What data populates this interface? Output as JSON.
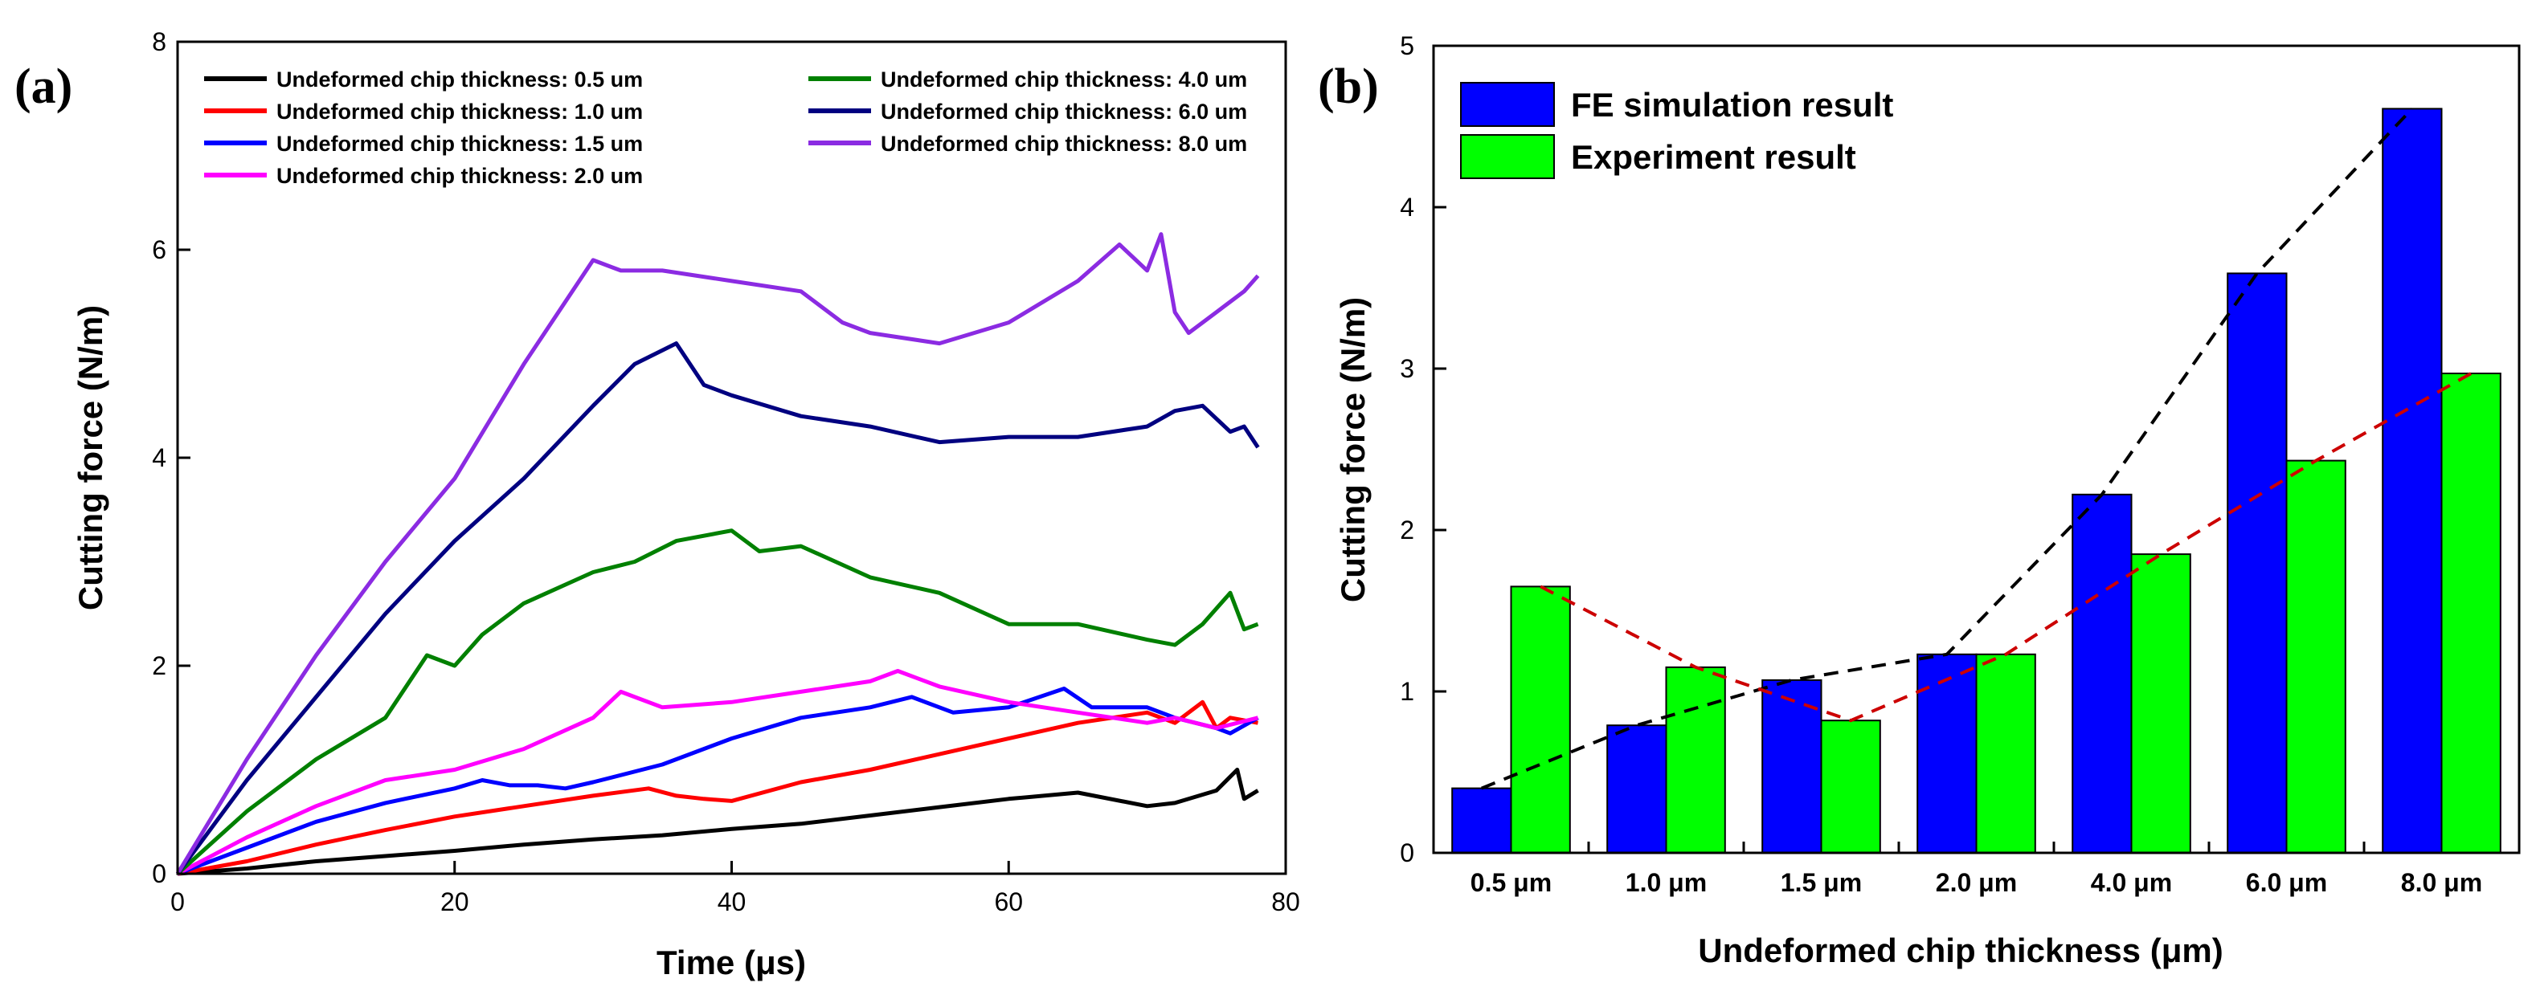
{
  "chart_data": [
    {
      "type": "line",
      "panel_label": "(a)",
      "xlabel": "Time (μs)",
      "ylabel": "Cutting force (N/m)",
      "xlim": [
        0,
        80
      ],
      "ylim": [
        0,
        8
      ],
      "x_ticks": [
        0,
        20,
        40,
        60,
        80
      ],
      "y_ticks": [
        0,
        2,
        4,
        6,
        8
      ],
      "legend_position": "top",
      "series": [
        {
          "name": "Undeformed chip thickness: 0.5 um",
          "color": "#000000",
          "x": [
            0,
            5,
            10,
            15,
            20,
            25,
            30,
            35,
            40,
            45,
            50,
            55,
            60,
            65,
            70,
            72,
            75,
            76.5,
            77,
            78
          ],
          "y": [
            0,
            0.05,
            0.12,
            0.17,
            0.22,
            0.28,
            0.33,
            0.37,
            0.43,
            0.48,
            0.56,
            0.64,
            0.72,
            0.78,
            0.65,
            0.68,
            0.8,
            1.0,
            0.72,
            0.8
          ]
        },
        {
          "name": "Undeformed chip thickness: 1.0 um",
          "color": "#ff0000",
          "x": [
            0,
            5,
            10,
            15,
            20,
            25,
            30,
            34,
            36,
            38,
            40,
            45,
            50,
            55,
            60,
            65,
            70,
            72,
            74,
            75,
            76,
            78
          ],
          "y": [
            0,
            0.12,
            0.28,
            0.42,
            0.55,
            0.65,
            0.75,
            0.82,
            0.75,
            0.72,
            0.7,
            0.88,
            1.0,
            1.15,
            1.3,
            1.45,
            1.55,
            1.45,
            1.65,
            1.4,
            1.5,
            1.45
          ]
        },
        {
          "name": "Undeformed chip thickness: 1.5 um",
          "color": "#0000ff",
          "x": [
            0,
            5,
            10,
            15,
            20,
            22,
            24,
            26,
            28,
            30,
            35,
            40,
            45,
            50,
            53,
            56,
            60,
            64,
            66,
            70,
            72,
            75,
            76,
            78
          ],
          "y": [
            0,
            0.25,
            0.5,
            0.68,
            0.82,
            0.9,
            0.85,
            0.85,
            0.82,
            0.88,
            1.05,
            1.3,
            1.5,
            1.6,
            1.7,
            1.55,
            1.6,
            1.78,
            1.6,
            1.6,
            1.5,
            1.4,
            1.35,
            1.5
          ]
        },
        {
          "name": "Undeformed chip thickness: 2.0 um",
          "color": "#ff00ff",
          "x": [
            0,
            5,
            10,
            15,
            20,
            25,
            30,
            32,
            35,
            40,
            45,
            50,
            52,
            55,
            60,
            65,
            70,
            72,
            75,
            78
          ],
          "y": [
            0,
            0.35,
            0.65,
            0.9,
            1.0,
            1.2,
            1.5,
            1.75,
            1.6,
            1.65,
            1.75,
            1.85,
            1.95,
            1.8,
            1.65,
            1.55,
            1.45,
            1.5,
            1.4,
            1.5
          ]
        },
        {
          "name": "Undeformed chip thickness: 4.0 um",
          "color": "#008000",
          "x": [
            0,
            5,
            10,
            15,
            18,
            20,
            22,
            25,
            30,
            33,
            36,
            40,
            42,
            45,
            50,
            55,
            60,
            65,
            70,
            72,
            74,
            76,
            77,
            78
          ],
          "y": [
            0,
            0.6,
            1.1,
            1.5,
            2.1,
            2.0,
            2.3,
            2.6,
            2.9,
            3.0,
            3.2,
            3.3,
            3.1,
            3.15,
            2.85,
            2.7,
            2.4,
            2.4,
            2.25,
            2.2,
            2.4,
            2.7,
            2.35,
            2.4
          ]
        },
        {
          "name": "Undeformed chip thickness: 6.0 um",
          "color": "#000080",
          "x": [
            0,
            5,
            10,
            15,
            20,
            25,
            30,
            33,
            36,
            38,
            40,
            45,
            50,
            55,
            60,
            65,
            70,
            72,
            74,
            76,
            77,
            78
          ],
          "y": [
            0,
            0.9,
            1.7,
            2.5,
            3.2,
            3.8,
            4.5,
            4.9,
            5.1,
            4.7,
            4.6,
            4.4,
            4.3,
            4.15,
            4.2,
            4.2,
            4.3,
            4.45,
            4.5,
            4.25,
            4.3,
            4.1
          ]
        },
        {
          "name": "Undeformed chip thickness: 8.0 um",
          "color": "#8b2be2",
          "x": [
            0,
            5,
            10,
            15,
            20,
            25,
            30,
            32,
            35,
            40,
            45,
            48,
            50,
            55,
            60,
            65,
            68,
            70,
            71,
            72,
            73,
            75,
            77,
            78
          ],
          "y": [
            0,
            1.1,
            2.1,
            3.0,
            3.8,
            4.9,
            5.9,
            5.8,
            5.8,
            5.7,
            5.6,
            5.3,
            5.2,
            5.1,
            5.3,
            5.7,
            6.05,
            5.8,
            6.15,
            5.4,
            5.2,
            5.4,
            5.6,
            5.75
          ]
        }
      ]
    },
    {
      "type": "bar",
      "panel_label": "(b)",
      "xlabel": "Undeformed chip thickness (μm)",
      "ylabel": "Cutting force (N/m)",
      "ylim": [
        0,
        5
      ],
      "y_ticks": [
        0,
        1,
        2,
        3,
        4,
        5
      ],
      "categories": [
        "0.5 μm",
        "1.0 μm",
        "1.5 μm",
        "2.0 μm",
        "4.0 μm",
        "6.0 μm",
        "8.0 μm"
      ],
      "legend_position": "top-left",
      "series": [
        {
          "name": "FE simulation result",
          "color": "#0000ff",
          "trend_color": "#000000",
          "values": [
            0.4,
            0.79,
            1.07,
            1.23,
            2.22,
            3.59,
            4.61
          ]
        },
        {
          "name": "Experiment result",
          "color": "#00ff00",
          "trend_color": "#cc0000",
          "values": [
            1.65,
            1.15,
            0.82,
            1.23,
            1.85,
            2.43,
            2.97
          ]
        }
      ]
    }
  ]
}
